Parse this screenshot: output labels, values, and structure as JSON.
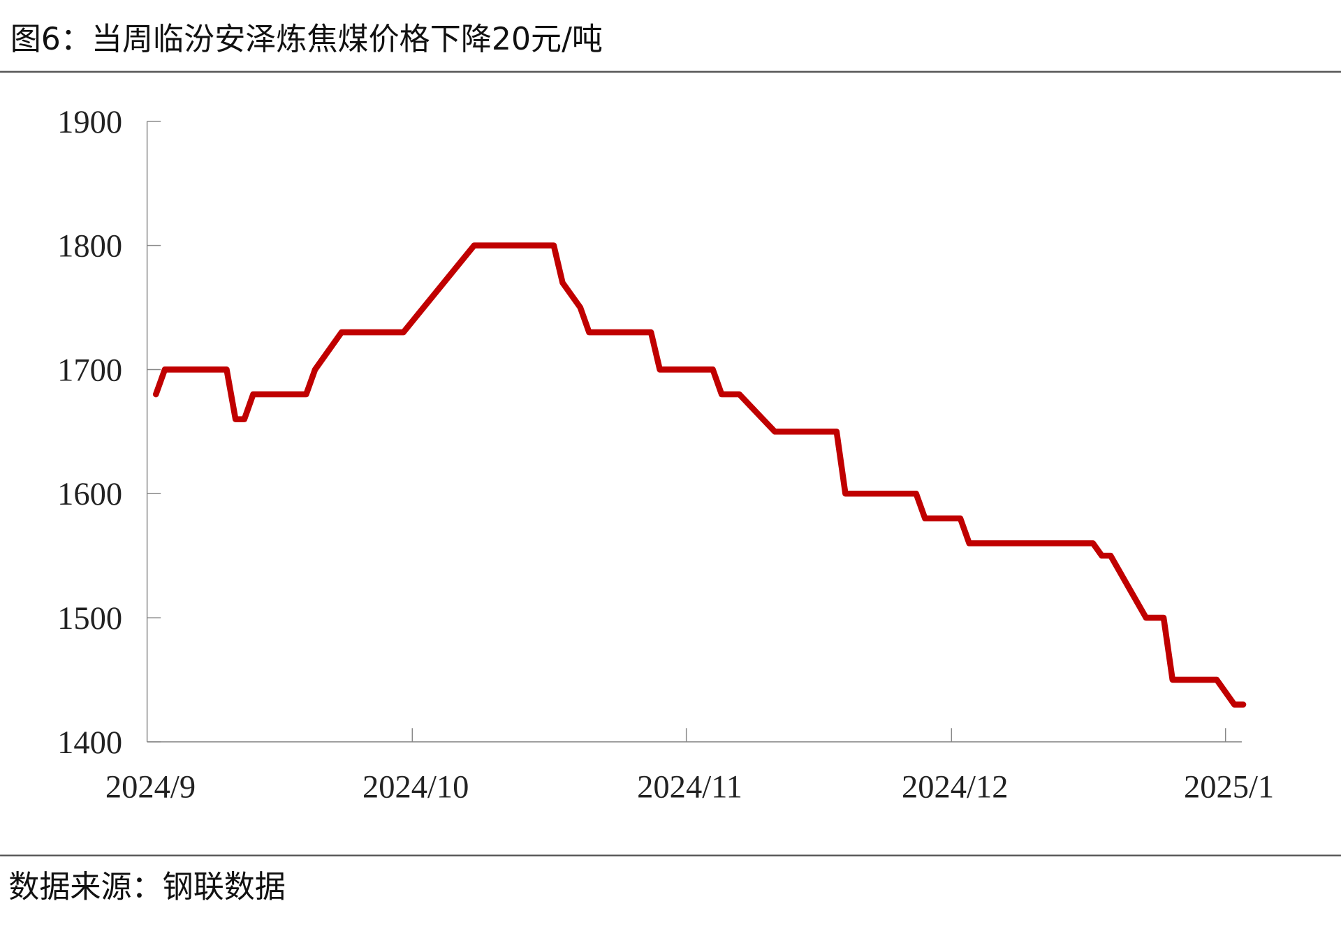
{
  "title": "图6：当周临汾安泽炼焦煤价格下降20元/吨",
  "source": "数据来源：钢联数据",
  "chart_data": {
    "type": "line",
    "title": "图6：当周临汾安泽炼焦煤价格下降20元/吨",
    "xlabel": "",
    "ylabel": "",
    "ylim": [
      1400,
      1900
    ],
    "yticks": [
      "1400",
      "1500",
      "1600",
      "1700",
      "1800",
      "1900"
    ],
    "xlim": [
      "2024-09-01",
      "2025-01-04"
    ],
    "xticks": [
      {
        "date": "2024-09-01",
        "label": "2024/9"
      },
      {
        "date": "2024-10-01",
        "label": "2024/10"
      },
      {
        "date": "2024-11-01",
        "label": "2024/11"
      },
      {
        "date": "2024-12-01",
        "label": "2024/12"
      },
      {
        "date": "2025-01-01",
        "label": "2025/1"
      }
    ],
    "grid": false,
    "legend": "none",
    "color": "#c00000",
    "series": [
      {
        "points": [
          [
            "2024-09-02",
            1680
          ],
          [
            "2024-09-03",
            1700
          ],
          [
            "2024-09-10",
            1700
          ],
          [
            "2024-09-11",
            1660
          ],
          [
            "2024-09-12",
            1660
          ],
          [
            "2024-09-13",
            1680
          ],
          [
            "2024-09-19",
            1680
          ],
          [
            "2024-09-20",
            1700
          ],
          [
            "2024-09-23",
            1730
          ],
          [
            "2024-09-30",
            1730
          ],
          [
            "2024-10-08",
            1800
          ],
          [
            "2024-10-17",
            1800
          ],
          [
            "2024-10-18",
            1770
          ],
          [
            "2024-10-20",
            1750
          ],
          [
            "2024-10-21",
            1730
          ],
          [
            "2024-10-28",
            1730
          ],
          [
            "2024-10-29",
            1700
          ],
          [
            "2024-11-04",
            1700
          ],
          [
            "2024-11-05",
            1680
          ],
          [
            "2024-11-07",
            1680
          ],
          [
            "2024-11-09",
            1665
          ],
          [
            "2024-11-11",
            1650
          ],
          [
            "2024-11-18",
            1650
          ],
          [
            "2024-11-19",
            1600
          ],
          [
            "2024-11-27",
            1600
          ],
          [
            "2024-11-28",
            1580
          ],
          [
            "2024-12-02",
            1580
          ],
          [
            "2024-12-03",
            1560
          ],
          [
            "2024-12-17",
            1560
          ],
          [
            "2024-12-18",
            1550
          ],
          [
            "2024-12-19",
            1550
          ],
          [
            "2024-12-21",
            1525
          ],
          [
            "2024-12-23",
            1500
          ],
          [
            "2024-12-25",
            1500
          ],
          [
            "2024-12-26",
            1450
          ],
          [
            "2024-12-31",
            1450
          ],
          [
            "2025-01-02",
            1430
          ],
          [
            "2025-01-03",
            1430
          ]
        ]
      }
    ]
  }
}
